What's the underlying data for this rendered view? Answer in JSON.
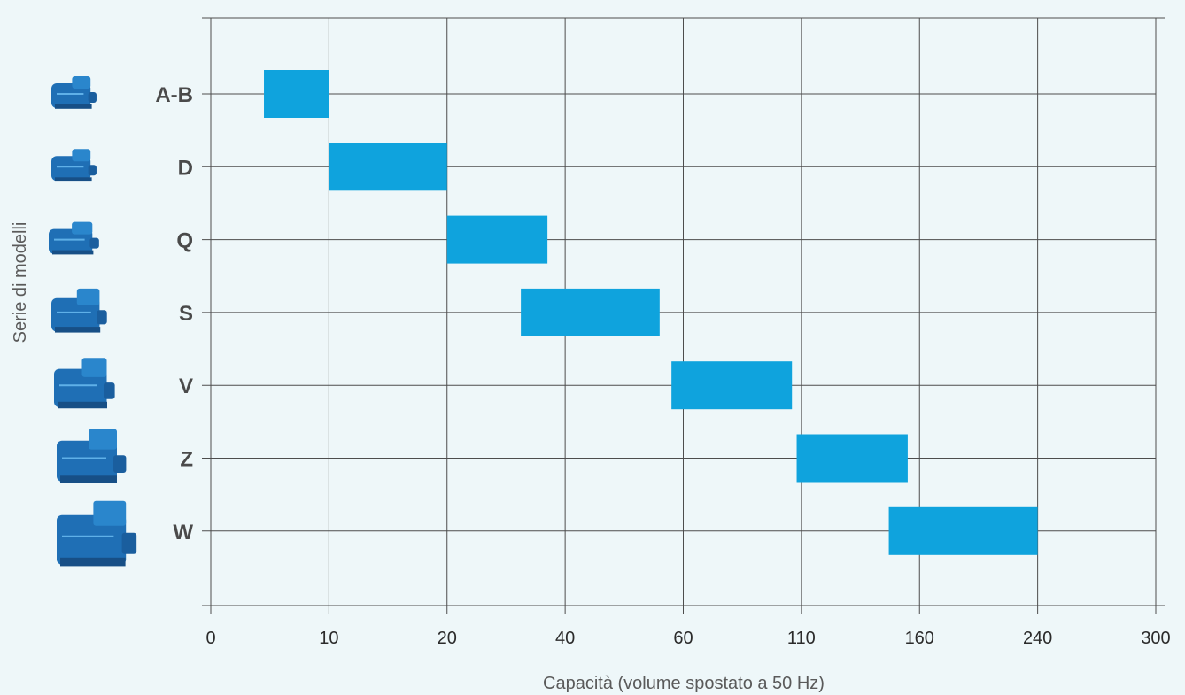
{
  "chart_data": {
    "type": "bar",
    "orientation": "horizontal-range",
    "title": "",
    "xlabel": "Capacità (volume spostato a 50 Hz)",
    "ylabel": "Serie di modelli",
    "x_tick_labels": [
      "0",
      "10",
      "20",
      "40",
      "60",
      "110",
      "160",
      "240",
      "300"
    ],
    "x_scale": "piecewise (tick labels evenly spaced)",
    "grid": true,
    "categories": [
      "A-B",
      "D",
      "Q",
      "S",
      "V",
      "Z",
      "W"
    ],
    "ranges": [
      {
        "category": "A-B",
        "start": 4.5,
        "end": 10
      },
      {
        "category": "D",
        "start": 10,
        "end": 20
      },
      {
        "category": "Q",
        "start": 20,
        "end": 37
      },
      {
        "category": "S",
        "start": 32.5,
        "end": 56
      },
      {
        "category": "V",
        "start": 58,
        "end": 106
      },
      {
        "category": "Z",
        "start": 108,
        "end": 155
      },
      {
        "category": "W",
        "start": 147,
        "end": 240
      }
    ],
    "colors": {
      "bar": "#0fa3dd",
      "grid": "#4d4d4d",
      "background": "#eef7f9",
      "compressor": "#1f6fb5"
    },
    "icons": [
      "compressor-a-b-icon",
      "compressor-d-icon",
      "compressor-q-icon",
      "compressor-s-icon",
      "compressor-v-icon",
      "compressor-z-icon",
      "compressor-w-icon"
    ]
  }
}
